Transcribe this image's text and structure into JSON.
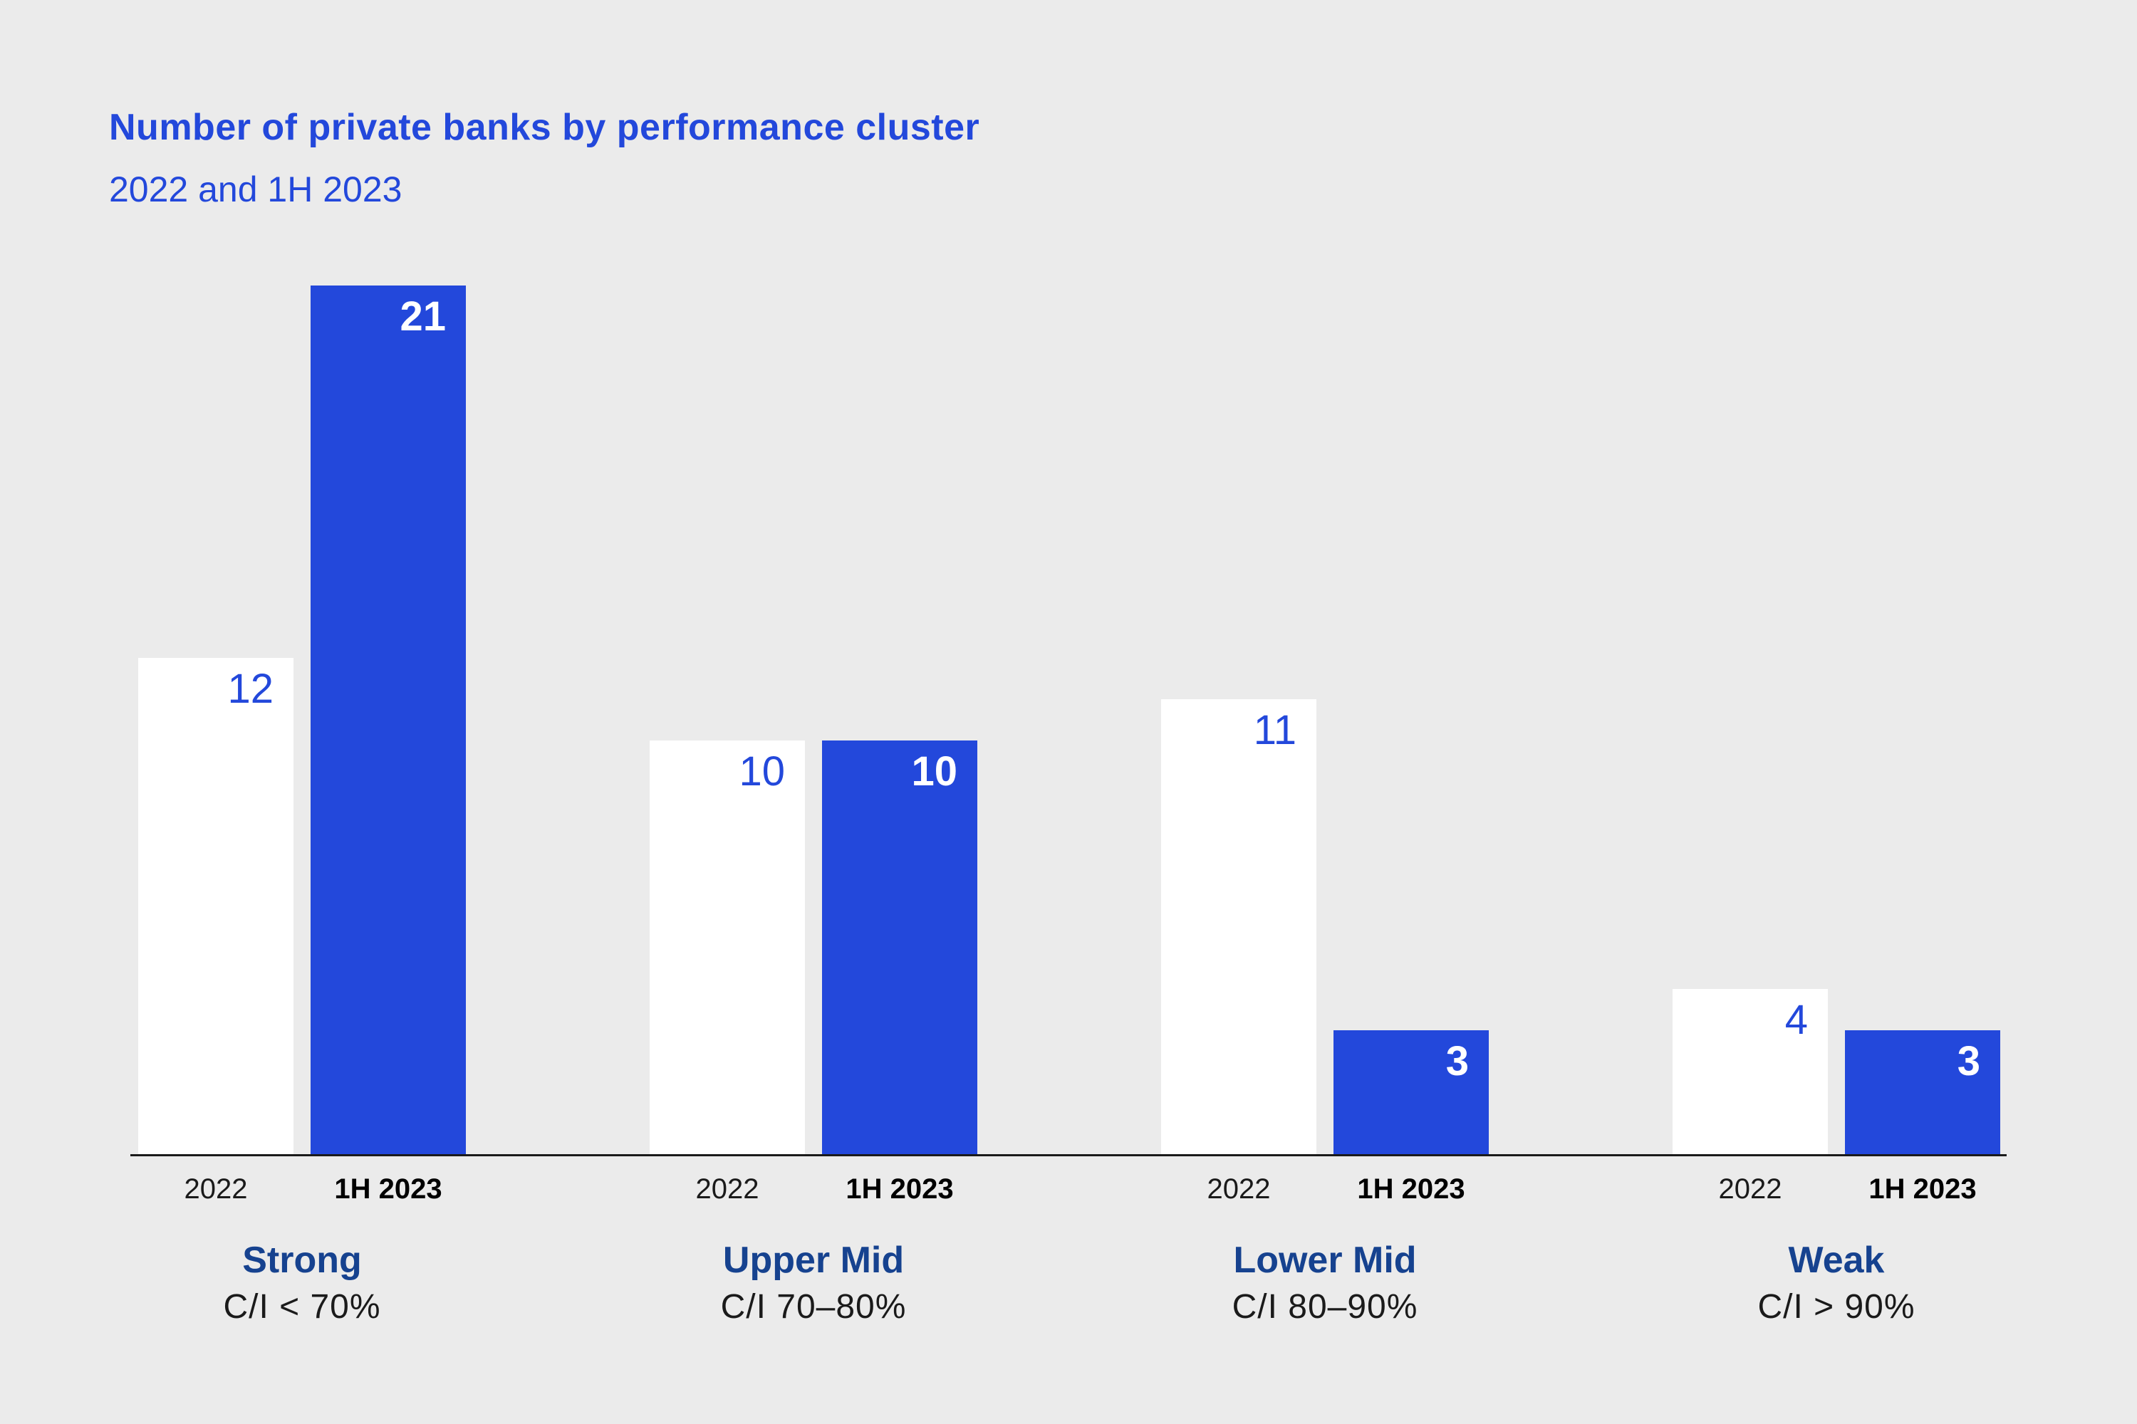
{
  "header": {
    "title": "Number of private banks by performance cluster",
    "subtitle": "2022 and 1H 2023"
  },
  "colors": {
    "background": "#EBEBEB",
    "accent_blue": "#2348DB",
    "bar_2022_fill": "#FFFFFF",
    "bar_1h2023_fill": "#2348DB",
    "cluster_name_navy": "#16428F",
    "axis_line": "#1A1A1A",
    "body_text": "#1A1A1A"
  },
  "chart_data": {
    "type": "bar",
    "title": "Number of private banks by performance cluster",
    "subtitle": "2022 and 1H 2023",
    "categories": [
      "Strong",
      "Upper Mid",
      "Lower Mid",
      "Weak"
    ],
    "category_sublabels": [
      "C/I < 70%",
      "C/I 70–80%",
      "C/I 80–90%",
      "C/I > 90%"
    ],
    "series": [
      {
        "name": "2022",
        "values": [
          12,
          10,
          11,
          4
        ],
        "color": "#FFFFFF",
        "label_color": "#2348DB"
      },
      {
        "name": "1H 2023",
        "values": [
          21,
          10,
          3,
          3
        ],
        "color": "#2348DB",
        "label_color": "#FFFFFF"
      }
    ],
    "ylim": [
      0,
      21
    ],
    "grid": false,
    "y_axis_shown": false,
    "legend_position": "none — series names repeated as tick labels under each bar pair",
    "value_labels_position": "inside bar, top right"
  }
}
